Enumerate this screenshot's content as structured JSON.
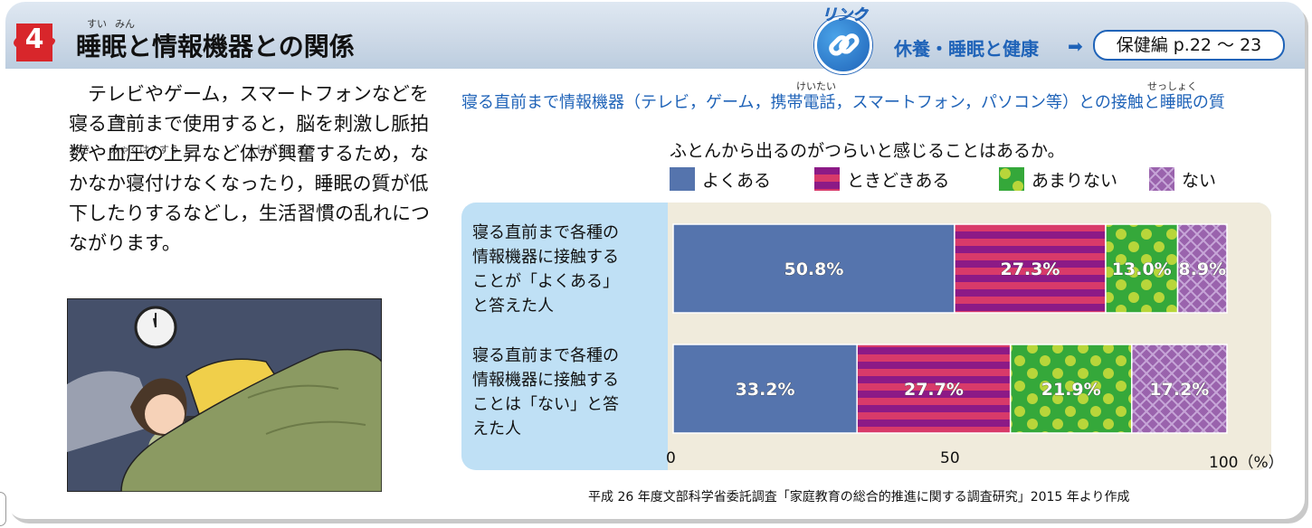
{
  "header": {
    "number": "4",
    "title": "睡眠と情報機器との関係",
    "title_ruby_1": "すい",
    "title_ruby_2": "みん",
    "link_word": "リンク",
    "link_topic": "休養・睡眠と健康",
    "link_ref": "保健編 p.22 ～ 23"
  },
  "body": {
    "paragraph": "　テレビやゲーム，スマートフォンなどを寝る直前まで使用すると，脳を刺激し脈拍数や血圧の上昇など体が興奮するため，なかなか寝付けなくなったり，睡眠の質が低下したりするなどし，生活習慣の乱れにつながります。",
    "ruby": [
      {
        "text": "ね"
      },
      {
        "text": "し"
      },
      {
        "text": "げき"
      },
      {
        "text": "みゃくはくすう"
      },
      {
        "text": "じょうしょう"
      }
    ]
  },
  "chart_data": {
    "type": "bar",
    "orientation": "horizontal-stacked",
    "title": "寝る直前まで情報機器（テレビ，ゲーム，携帯電話，スマートフォン，パソコン等）との接触と睡眠の質",
    "title_ruby": [
      {
        "text": "けいたい"
      },
      {
        "text": "せっしょく"
      }
    ],
    "question": "ふとんから出るのがつらいと感じることはあるか。",
    "categories": [
      "寝る直前まで各種の情報機器に接触することが「よくある」と答えた人",
      "寝る直前まで各種の情報機器に接触することは「ない」と答えた人"
    ],
    "category_lines": [
      [
        "寝る直前まで各種の",
        "情報機器に接触する",
        "ことが「よくある」",
        "と答えた人"
      ],
      [
        "寝る直前まで各種の",
        "情報機器に接触する",
        "ことは「ない」と答",
        "えた人"
      ]
    ],
    "series": [
      {
        "name": "よくある",
        "values": [
          50.8,
          33.2
        ],
        "labels": [
          "50.8%",
          "33.2%"
        ],
        "color": "#5574ad"
      },
      {
        "name": "ときどきある",
        "values": [
          27.3,
          27.7
        ],
        "labels": [
          "27.3%",
          "27.7%"
        ],
        "color": "#8c1a86"
      },
      {
        "name": "あまりない",
        "values": [
          13.0,
          21.9
        ],
        "labels": [
          "13.0%",
          "21.9%"
        ],
        "color": "#35a83a"
      },
      {
        "name": "ない",
        "values": [
          8.9,
          17.2
        ],
        "labels": [
          "8.9%",
          "17.2%"
        ],
        "color": "#9a63ad"
      }
    ],
    "xlim": [
      0,
      100
    ],
    "x_ticks": [
      "0",
      "50",
      "100（%）"
    ],
    "legend_position": "top",
    "source": "平成 26 年度文部科学省委託調査「家庭教育の総合的推進に関する調査研究」2015 年より作成"
  }
}
